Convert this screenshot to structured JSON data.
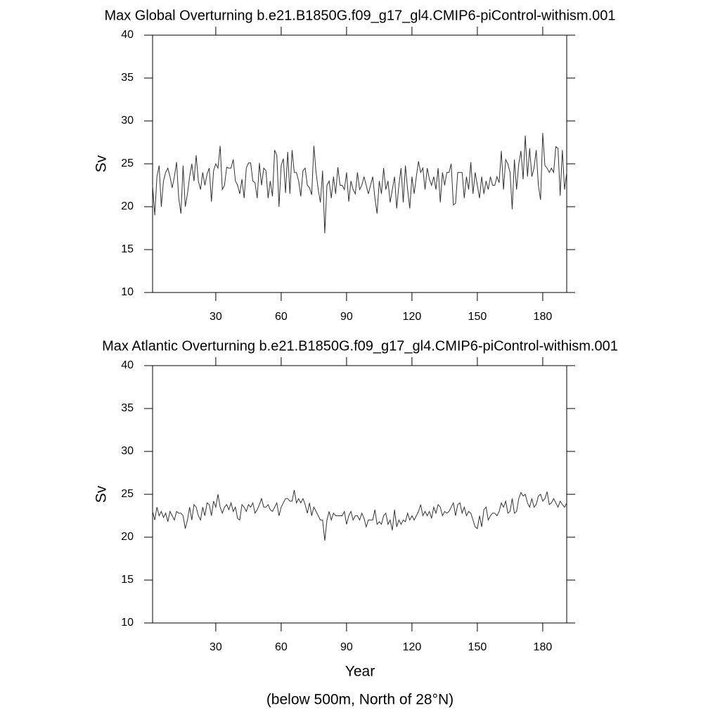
{
  "chart_data": [
    {
      "type": "line",
      "title": "Max Global Overturning b.e21.B1850G.f09_g17_gl4.CMIP6-piControl-withism.001",
      "ylabel": "Sv",
      "color": "#333333",
      "xlim": [
        1,
        191
      ],
      "ylim": [
        10,
        40
      ],
      "xticks": [
        30,
        60,
        90,
        120,
        150,
        180
      ],
      "yticks": [
        10,
        15,
        20,
        25,
        30,
        35,
        40
      ],
      "x": [
        1,
        2,
        3,
        4,
        5,
        6,
        7,
        8,
        9,
        10,
        11,
        12,
        13,
        14,
        15,
        16,
        17,
        18,
        19,
        20,
        21,
        22,
        23,
        24,
        25,
        26,
        27,
        28,
        29,
        30,
        31,
        32,
        33,
        34,
        35,
        36,
        37,
        38,
        39,
        40,
        41,
        42,
        43,
        44,
        45,
        46,
        47,
        48,
        49,
        50,
        51,
        52,
        53,
        54,
        55,
        56,
        57,
        58,
        59,
        60,
        61,
        62,
        63,
        64,
        65,
        66,
        67,
        68,
        69,
        70,
        71,
        72,
        73,
        74,
        75,
        76,
        77,
        78,
        79,
        80,
        81,
        82,
        83,
        84,
        85,
        86,
        87,
        88,
        89,
        90,
        91,
        92,
        93,
        94,
        95,
        96,
        97,
        98,
        99,
        100,
        101,
        102,
        103,
        104,
        105,
        106,
        107,
        108,
        109,
        110,
        111,
        112,
        113,
        114,
        115,
        116,
        117,
        118,
        119,
        120,
        121,
        122,
        123,
        124,
        125,
        126,
        127,
        128,
        129,
        130,
        131,
        132,
        133,
        134,
        135,
        136,
        137,
        138,
        139,
        140,
        141,
        142,
        143,
        144,
        145,
        146,
        147,
        148,
        149,
        150,
        151,
        152,
        153,
        154,
        155,
        156,
        157,
        158,
        159,
        160,
        161,
        162,
        163,
        164,
        165,
        166,
        167,
        168,
        169,
        170,
        171,
        172,
        173,
        174,
        175,
        176,
        177,
        178,
        179,
        180,
        181,
        182,
        183,
        184,
        185,
        186,
        187,
        188,
        189,
        190,
        191
      ],
      "values": [
        22.5,
        19.0,
        23.5,
        24.8,
        20.0,
        23.0,
        24.0,
        24.5,
        23.5,
        22.2,
        23.5,
        25.2,
        21.0,
        19.2,
        24.8,
        20.0,
        21.5,
        23.5,
        25.0,
        23.0,
        26.0,
        23.0,
        22.0,
        24.0,
        22.5,
        23.8,
        24.5,
        20.6,
        24.2,
        25.0,
        24.5,
        27.1,
        22.0,
        22.5,
        24.6,
        24.5,
        24.5,
        25.5,
        23.0,
        22.5,
        21.5,
        23.2,
        21.0,
        24.5,
        25.1,
        25.1,
        23.0,
        22.8,
        21.0,
        25.1,
        22.5,
        24.5,
        24.2,
        21.0,
        23.0,
        21.2,
        26.6,
        26.0,
        20.0,
        24.8,
        25.6,
        21.6,
        26.4,
        21.5,
        26.6,
        24.0,
        24.0,
        23.0,
        21.2,
        24.2,
        24.5,
        22.5,
        22.2,
        21.4,
        27.1,
        24.0,
        22.0,
        20.5,
        24.2,
        16.9,
        22.5,
        23.0,
        21.0,
        23.5,
        21.5,
        24.6,
        22.5,
        22.5,
        22.0,
        24.0,
        20.6,
        23.0,
        22.0,
        21.5,
        24.0,
        22.0,
        22.5,
        23.5,
        22.5,
        21.5,
        22.5,
        23.5,
        21.0,
        19.2,
        23.0,
        21.5,
        24.5,
        22.0,
        23.0,
        20.5,
        22.0,
        23.5,
        19.8,
        22.5,
        24.5,
        20.5,
        24.8,
        22.0,
        19.8,
        23.5,
        21.5,
        23.5,
        25.3,
        24.0,
        24.5,
        22.0,
        24.5,
        23.2,
        22.5,
        23.5,
        22.0,
        24.5,
        20.5,
        24.0,
        22.5,
        24.0,
        24.0,
        25.0,
        20.2,
        20.4,
        24.0,
        24.0,
        24.0,
        21.0,
        23.5,
        22.0,
        25.2,
        21.5,
        24.0,
        22.5,
        21.0,
        23.5,
        21.5,
        23.0,
        22.0,
        23.5,
        22.5,
        22.5,
        23.5,
        22.8,
        26.5,
        22.0,
        25.5,
        25.0,
        24.0,
        19.7,
        25.5,
        22.0,
        25.0,
        26.5,
        23.2,
        28.3,
        23.5,
        26.8,
        23.5,
        24.5,
        26.6,
        22.5,
        20.8,
        28.6,
        24.8,
        24.5,
        24.0,
        24.5,
        24.0,
        27.0,
        26.8,
        21.3,
        26.6,
        22.0,
        24.0
      ]
    },
    {
      "type": "line",
      "title": "Max Atlantic Overturning b.e21.B1850G.f09_g17_gl4.CMIP6-piControl-withism.001",
      "ylabel": "Sv",
      "xlabel": "Year",
      "note": "(below 500m, North of 28°N)",
      "color": "#333333",
      "xlim": [
        1,
        191
      ],
      "ylim": [
        10,
        40
      ],
      "xticks": [
        30,
        60,
        90,
        120,
        150,
        180
      ],
      "yticks": [
        10,
        15,
        20,
        25,
        30,
        35,
        40
      ],
      "x": [
        1,
        2,
        3,
        4,
        5,
        6,
        7,
        8,
        9,
        10,
        11,
        12,
        13,
        14,
        15,
        16,
        17,
        18,
        19,
        20,
        21,
        22,
        23,
        24,
        25,
        26,
        27,
        28,
        29,
        30,
        31,
        32,
        33,
        34,
        35,
        36,
        37,
        38,
        39,
        40,
        41,
        42,
        43,
        44,
        45,
        46,
        47,
        48,
        49,
        50,
        51,
        52,
        53,
        54,
        55,
        56,
        57,
        58,
        59,
        60,
        61,
        62,
        63,
        64,
        65,
        66,
        67,
        68,
        69,
        70,
        71,
        72,
        73,
        74,
        75,
        76,
        77,
        78,
        79,
        80,
        81,
        82,
        83,
        84,
        85,
        86,
        87,
        88,
        89,
        90,
        91,
        92,
        93,
        94,
        95,
        96,
        97,
        98,
        99,
        100,
        101,
        102,
        103,
        104,
        105,
        106,
        107,
        108,
        109,
        110,
        111,
        112,
        113,
        114,
        115,
        116,
        117,
        118,
        119,
        120,
        121,
        122,
        123,
        124,
        125,
        126,
        127,
        128,
        129,
        130,
        131,
        132,
        133,
        134,
        135,
        136,
        137,
        138,
        139,
        140,
        141,
        142,
        143,
        144,
        145,
        146,
        147,
        148,
        149,
        150,
        151,
        152,
        153,
        154,
        155,
        156,
        157,
        158,
        159,
        160,
        161,
        162,
        163,
        164,
        165,
        166,
        167,
        168,
        169,
        170,
        171,
        172,
        173,
        174,
        175,
        176,
        177,
        178,
        179,
        180,
        181,
        182,
        183,
        184,
        185,
        186,
        187,
        188,
        189,
        190,
        191
      ],
      "values": [
        23.0,
        22.0,
        23.5,
        22.5,
        23.0,
        22.3,
        22.8,
        21.8,
        23.0,
        22.5,
        22.0,
        23.0,
        22.8,
        22.8,
        22.5,
        21.0,
        22.0,
        23.5,
        22.0,
        23.8,
        23.5,
        22.5,
        22.0,
        23.5,
        22.5,
        24.0,
        23.8,
        22.5,
        24.2,
        23.5,
        25.0,
        23.5,
        22.8,
        23.5,
        23.8,
        23.2,
        24.0,
        23.0,
        23.5,
        22.2,
        22.0,
        23.8,
        23.5,
        23.0,
        23.8,
        23.5,
        24.0,
        22.8,
        23.2,
        23.8,
        24.5,
        23.5,
        23.5,
        23.8,
        23.2,
        23.0,
        23.5,
        24.0,
        22.5,
        23.5,
        24.0,
        24.5,
        24.5,
        24.2,
        24.2,
        25.5,
        24.0,
        24.5,
        24.0,
        24.5,
        23.8,
        22.8,
        24.0,
        22.5,
        23.5,
        23.0,
        22.5,
        22.0,
        22.0,
        19.6,
        22.0,
        23.0,
        22.0,
        22.8,
        22.5,
        22.5,
        22.5,
        22.5,
        23.0,
        21.5,
        22.5,
        23.0,
        22.0,
        22.5,
        22.5,
        22.0,
        22.8,
        22.2,
        21.2,
        22.0,
        22.0,
        22.0,
        23.2,
        21.5,
        21.8,
        21.5,
        22.5,
        22.8,
        21.5,
        22.0,
        20.8,
        23.2,
        21.2,
        22.0,
        21.5,
        22.0,
        21.8,
        22.8,
        22.0,
        22.5,
        22.0,
        22.5,
        23.0,
        23.8,
        22.5,
        23.0,
        22.5,
        23.0,
        22.2,
        23.5,
        22.8,
        23.8,
        23.5,
        22.5,
        23.0,
        22.8,
        23.0,
        23.5,
        24.0,
        22.5,
        23.8,
        24.0,
        22.8,
        23.5,
        22.5,
        23.0,
        22.8,
        22.0,
        21.2,
        21.0,
        22.5,
        21.2,
        23.2,
        23.5,
        22.0,
        22.5,
        22.8,
        22.8,
        22.5,
        23.0,
        24.0,
        23.5,
        24.2,
        22.8,
        23.0,
        24.5,
        22.8,
        23.0,
        24.5,
        25.2,
        24.8,
        25.0,
        24.0,
        23.5,
        24.5,
        23.5,
        23.8,
        24.8,
        25.0,
        24.2,
        24.5,
        25.3,
        23.8,
        24.0,
        24.5,
        24.0,
        23.5,
        24.2,
        23.8,
        23.5,
        24.0
      ]
    }
  ]
}
